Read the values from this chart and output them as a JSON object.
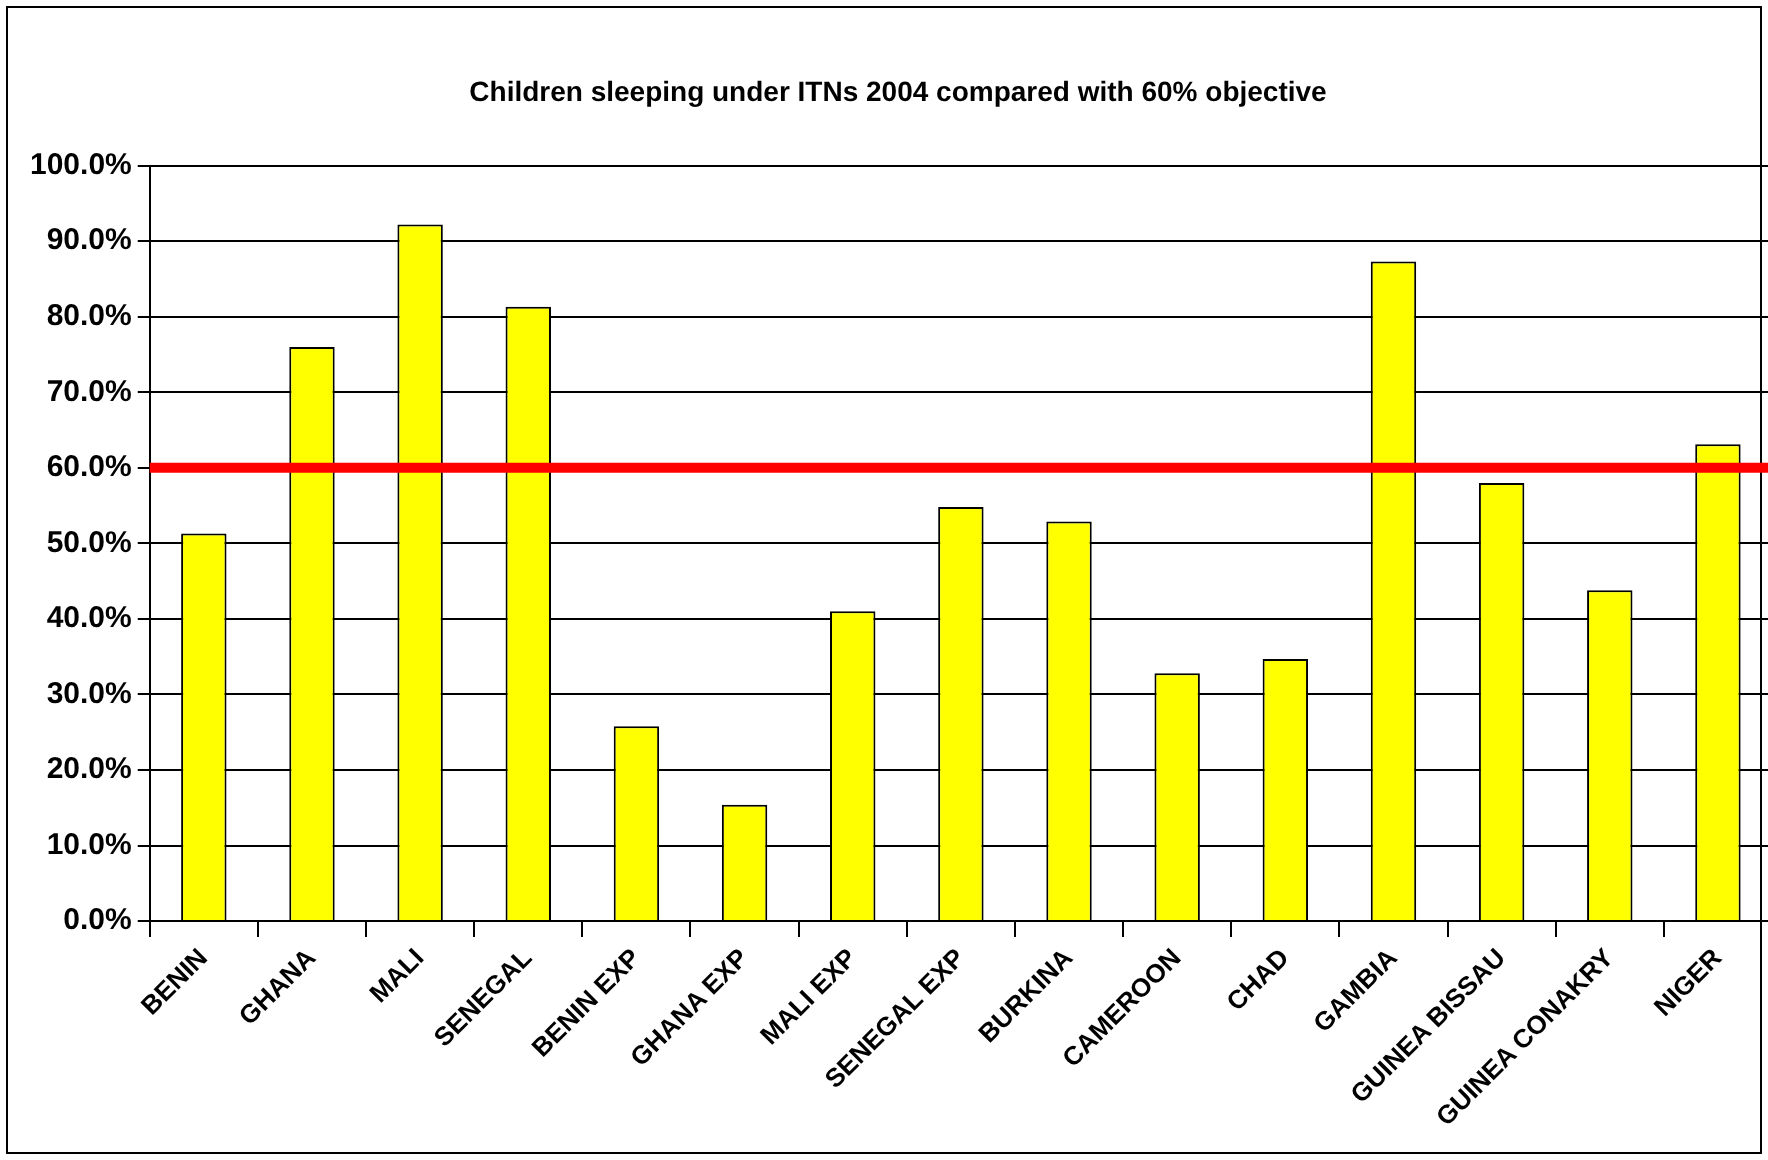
{
  "chart_data": {
    "type": "bar",
    "title": "Children sleeping under ITNs 2004 compared with 60% objective",
    "categories": [
      "BENIN",
      "GHANA",
      "MALI",
      "SENEGAL",
      "BENIN EXP",
      "GHANA EXP",
      "MALI EXP",
      "SENEGAL EXP",
      "BURKINA",
      "CAMEROON",
      "CHAD",
      "GAMBIA",
      "GUINEA BISSAU",
      "GUINEA CONAKRY",
      "NIGER"
    ],
    "values": [
      51.3,
      76.0,
      92.2,
      81.3,
      25.8,
      15.4,
      41.0,
      54.8,
      52.9,
      32.8,
      34.7,
      87.3,
      58.0,
      43.8,
      63.1
    ],
    "color": "#ffff00",
    "ylim": [
      0,
      100
    ],
    "yticks": [
      {
        "value": 0,
        "label": "0.0%"
      },
      {
        "value": 10,
        "label": "10.0%"
      },
      {
        "value": 20,
        "label": "20.0%"
      },
      {
        "value": 30,
        "label": "30.0%"
      },
      {
        "value": 40,
        "label": "40.0%"
      },
      {
        "value": 50,
        "label": "50.0%"
      },
      {
        "value": 60,
        "label": "60.0%"
      },
      {
        "value": 70,
        "label": "70.0%"
      },
      {
        "value": 80,
        "label": "80.0%"
      },
      {
        "value": 90,
        "label": "90.0%"
      },
      {
        "value": 100,
        "label": "100.0%"
      }
    ],
    "ref_lines": [
      {
        "axis": "y",
        "value": 60,
        "color": "#ff0000"
      }
    ],
    "grid": "y",
    "legend": false
  }
}
